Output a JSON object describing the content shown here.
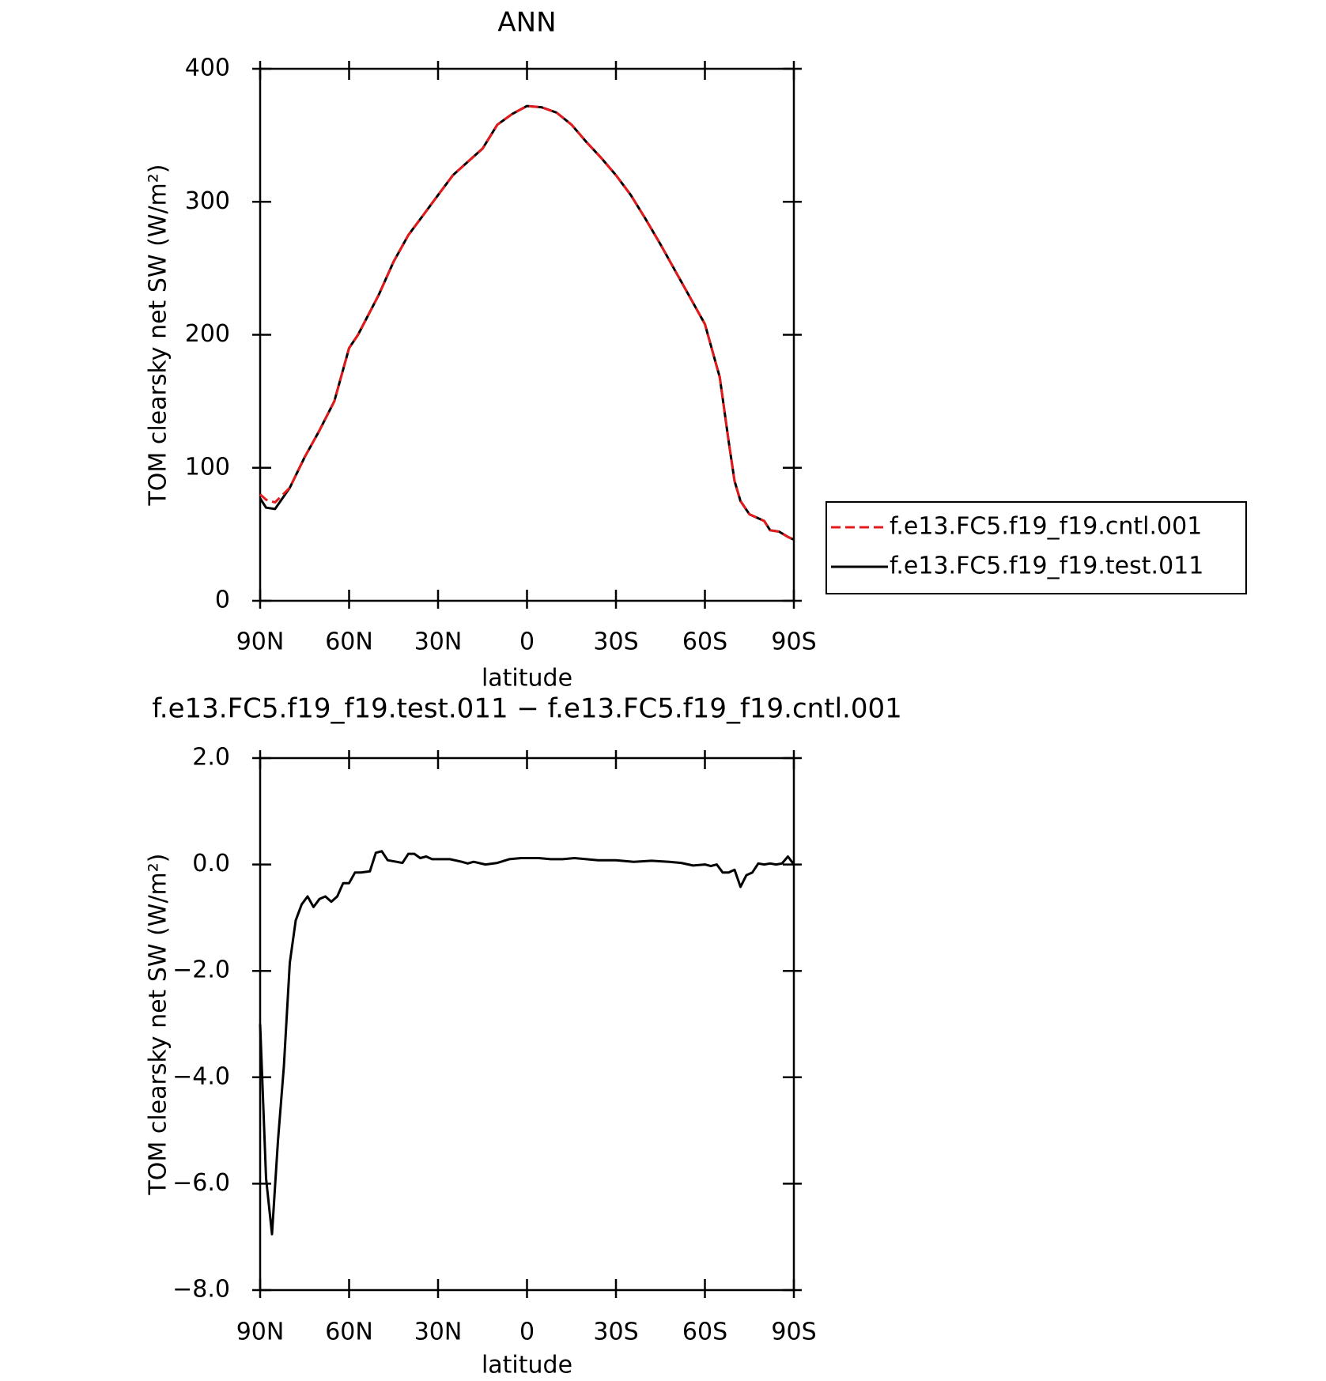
{
  "chart_data": [
    {
      "type": "line",
      "title": "ANN",
      "xlabel": "latitude",
      "ylabel": "TOM clearsky net SW (W/m²)",
      "x": [
        90,
        88,
        85,
        80,
        75,
        70,
        65,
        60,
        57,
        50,
        45,
        40,
        35,
        30,
        25,
        20,
        15,
        10,
        5,
        0,
        -5,
        -10,
        -15,
        -20,
        -25,
        -30,
        -35,
        -40,
        -45,
        -50,
        -55,
        -60,
        -65,
        -68,
        -70,
        -72,
        -75,
        -80,
        -82,
        -85,
        -88,
        -90
      ],
      "series": [
        {
          "name": "f.e13.FC5.f19_f19.cntl.001",
          "color": "#e41a1c",
          "dash": true,
          "values": [
            80,
            76,
            74,
            85,
            108,
            128,
            150,
            190,
            200,
            230,
            255,
            275,
            290,
            305,
            320,
            330,
            340,
            358,
            366,
            372,
            371,
            367,
            358,
            345,
            333,
            320,
            305,
            287,
            268,
            248,
            228,
            208,
            168,
            120,
            90,
            75,
            65,
            60,
            53,
            52,
            48,
            46
          ]
        },
        {
          "name": "f.e13.FC5.f19_f19.test.011",
          "color": "#000000",
          "dash": false,
          "values": [
            77,
            70,
            69,
            85,
            108,
            128,
            150,
            190,
            200,
            230,
            255,
            275,
            290,
            305,
            320,
            330,
            340,
            358,
            366,
            372,
            371,
            367,
            358,
            345,
            333,
            320,
            305,
            287,
            268,
            248,
            228,
            208,
            168,
            120,
            90,
            75,
            65,
            60,
            53,
            52,
            48,
            46
          ]
        }
      ],
      "xlim": [
        90,
        -90
      ],
      "xticks": [
        {
          "value": 90,
          "label": "90N"
        },
        {
          "value": 60,
          "label": "60N"
        },
        {
          "value": 30,
          "label": "30N"
        },
        0,
        {
          "value": -30,
          "label": "30S"
        },
        {
          "value": -60,
          "label": "60S"
        },
        {
          "value": -90,
          "label": "90S"
        }
      ],
      "ylim": [
        0,
        400
      ],
      "yticks": [
        0,
        100,
        200,
        300,
        400
      ],
      "legend": "right"
    },
    {
      "type": "line",
      "title": "f.e13.FC5.f19_f19.test.011 − f.e13.FC5.f19_f19.cntl.001",
      "xlabel": "latitude",
      "ylabel": "TOM clearsky net SW (W/m²)",
      "x": [
        90,
        88,
        86,
        84,
        82,
        80,
        78,
        76,
        74,
        72,
        70,
        68,
        66,
        64,
        62,
        60,
        58,
        56,
        53,
        51,
        49,
        47,
        44,
        42,
        40,
        38,
        36,
        34,
        32,
        28,
        26,
        22,
        20,
        18,
        14,
        10,
        6,
        2,
        -4,
        -8,
        -12,
        -16,
        -20,
        -24,
        -30,
        -36,
        -42,
        -48,
        -52,
        -56,
        -60,
        -62,
        -64,
        -66,
        -68,
        -70,
        -72,
        -74,
        -76,
        -78,
        -80,
        -82,
        -84,
        -86,
        -88,
        -90
      ],
      "values": [
        -3.0,
        -5.9,
        -6.95,
        -5.2,
        -3.8,
        -1.85,
        -1.05,
        -0.75,
        -0.6,
        -0.8,
        -0.65,
        -0.6,
        -0.7,
        -0.6,
        -0.35,
        -0.35,
        -0.15,
        -0.15,
        -0.13,
        0.22,
        0.25,
        0.08,
        0.05,
        0.03,
        0.2,
        0.2,
        0.12,
        0.15,
        0.1,
        0.1,
        0.1,
        0.05,
        0.02,
        0.05,
        0.0,
        0.03,
        0.1,
        0.12,
        0.12,
        0.1,
        0.1,
        0.12,
        0.1,
        0.08,
        0.08,
        0.05,
        0.07,
        0.05,
        0.03,
        -0.02,
        0.0,
        -0.03,
        0.0,
        -0.15,
        -0.15,
        -0.1,
        -0.42,
        -0.2,
        -0.15,
        0.02,
        0.0,
        0.02,
        0.0,
        0.02,
        0.15,
        0.0
      ],
      "color": "#000000",
      "xlim": [
        90,
        -90
      ],
      "xticks": [
        {
          "value": 90,
          "label": "90N"
        },
        {
          "value": 60,
          "label": "60N"
        },
        {
          "value": 30,
          "label": "30N"
        },
        0,
        {
          "value": -30,
          "label": "30S"
        },
        {
          "value": -60,
          "label": "60S"
        },
        {
          "value": -90,
          "label": "90S"
        }
      ],
      "ylim": [
        -8,
        2
      ],
      "yticks": [
        {
          "value": -8,
          "label": "−8.0"
        },
        {
          "value": -6,
          "label": "−6.0"
        },
        {
          "value": -4,
          "label": "−4.0"
        },
        {
          "value": -2,
          "label": "−2.0"
        },
        {
          "value": 0,
          "label": "0.0"
        },
        {
          "value": 2,
          "label": "2.0"
        }
      ]
    }
  ]
}
